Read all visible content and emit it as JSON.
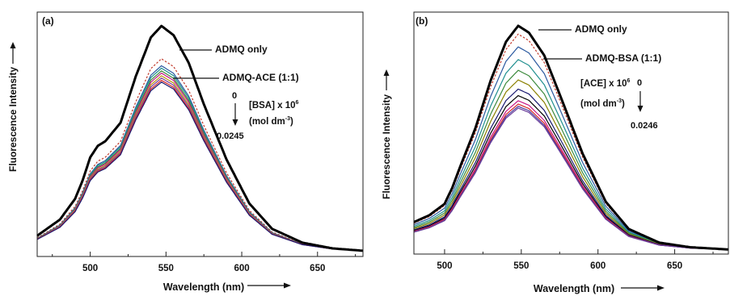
{
  "chart_data": [
    {
      "type": "line",
      "panel_label": "(a)",
      "xlabel": "Wavelength (nm)",
      "ylabel": "Fluorescence Intensity",
      "xlim": [
        465,
        680
      ],
      "ylim": [
        0,
        1.06
      ],
      "xticks": [
        500,
        550,
        600,
        650
      ],
      "grid": false,
      "annotations": {
        "bold_curve": "ADMQ only",
        "complex_curve": "ADMQ-ACE (1:1)",
        "concentration": "[BSA] x 10",
        "exponent": "6",
        "units_open": "(mol dm",
        "units_exponent": "-3",
        "units_close": ")",
        "start_value": "0",
        "end_value": "0.0245"
      },
      "profile": {
        "x": [
          465,
          480,
          490,
          495,
          500,
          505,
          510,
          520,
          530,
          540,
          547,
          555,
          565,
          575,
          590,
          605,
          620,
          640,
          660,
          680
        ],
        "y": [
          0.09,
          0.16,
          0.25,
          0.33,
          0.43,
          0.48,
          0.5,
          0.58,
          0.78,
          0.95,
          1.0,
          0.96,
          0.84,
          0.66,
          0.42,
          0.23,
          0.12,
          0.06,
          0.035,
          0.025
        ]
      },
      "series": [
        {
          "peak": 1.0,
          "color": "#000000",
          "width": 3,
          "dashed": false
        },
        {
          "peak": 0.854,
          "color": "#c0392b",
          "width": 1.2,
          "dashed": true
        },
        {
          "peak": 0.823,
          "color": "#2c5aa0",
          "width": 1.2,
          "dashed": false
        },
        {
          "peak": 0.812,
          "color": "#1f8f8f",
          "width": 1.2,
          "dashed": false
        },
        {
          "peak": 0.8,
          "color": "#3c8a3c",
          "width": 1.2,
          "dashed": false
        },
        {
          "peak": 0.79,
          "color": "#c71585",
          "width": 1.2,
          "dashed": false
        },
        {
          "peak": 0.778,
          "color": "#b8960c",
          "width": 1.2,
          "dashed": false
        },
        {
          "peak": 0.768,
          "color": "#7a3e9d",
          "width": 1.2,
          "dashed": false
        },
        {
          "peak": 0.758,
          "color": "#d62728",
          "width": 1.2,
          "dashed": false
        },
        {
          "peak": 0.75,
          "color": "#1a1a70",
          "width": 1.2,
          "dashed": false
        }
      ]
    },
    {
      "type": "line",
      "panel_label": "(b)",
      "xlabel": "Wavelength (nm)",
      "ylabel": "Fluorescence Intensity",
      "xlim": [
        480,
        685
      ],
      "ylim": [
        0,
        1.06
      ],
      "xticks": [
        500,
        550,
        600,
        650
      ],
      "grid": false,
      "annotations": {
        "bold_curve": "ADMQ only",
        "complex_curve": "ADMQ-BSA (1:1)",
        "concentration": "[ACE] x 10",
        "exponent": "6",
        "units_open": "(mol dm",
        "units_exponent": "-3",
        "units_close": ")",
        "start_value": "0",
        "end_value": "0.0246"
      },
      "profile": {
        "x": [
          480,
          490,
          500,
          505,
          510,
          520,
          530,
          540,
          548,
          555,
          565,
          575,
          590,
          605,
          620,
          640,
          660,
          685
        ],
        "y": [
          0.14,
          0.17,
          0.22,
          0.29,
          0.38,
          0.55,
          0.76,
          0.93,
          1.0,
          0.97,
          0.87,
          0.7,
          0.44,
          0.23,
          0.11,
          0.05,
          0.03,
          0.02
        ]
      },
      "series": [
        {
          "peak": 1.0,
          "color": "#000000",
          "width": 3,
          "dashed": false
        },
        {
          "peak": 0.963,
          "color": "#c0392b",
          "width": 1.2,
          "dashed": true
        },
        {
          "peak": 0.906,
          "color": "#2c5aa0",
          "width": 1.2,
          "dashed": false
        },
        {
          "peak": 0.849,
          "color": "#1f8f8f",
          "width": 1.2,
          "dashed": false
        },
        {
          "peak": 0.801,
          "color": "#3c8a3c",
          "width": 1.2,
          "dashed": false
        },
        {
          "peak": 0.758,
          "color": "#8b8000",
          "width": 1.2,
          "dashed": false
        },
        {
          "peak": 0.717,
          "color": "#1a1a70",
          "width": 1.2,
          "dashed": false
        },
        {
          "peak": 0.688,
          "color": "#000000",
          "width": 1.2,
          "dashed": false
        },
        {
          "peak": 0.665,
          "color": "#c71585",
          "width": 1.2,
          "dashed": false
        },
        {
          "peak": 0.65,
          "color": "#d62728",
          "width": 1.2,
          "dashed": false
        },
        {
          "peak": 0.64,
          "color": "#4b3c9d",
          "width": 1.2,
          "dashed": false
        },
        {
          "peak": 0.632,
          "color": "#6a3d9a",
          "width": 1.2,
          "dashed": false
        }
      ]
    }
  ]
}
